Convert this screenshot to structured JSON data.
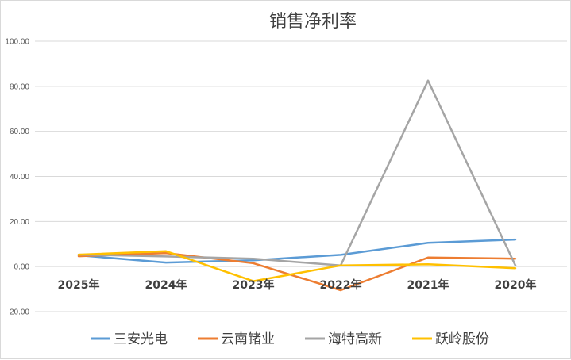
{
  "chart_data": {
    "type": "line",
    "title": "销售净利率",
    "categories": [
      "2025年",
      "2024年",
      "2023年",
      "2022年",
      "2021年",
      "2020年"
    ],
    "y_tick_labels": [
      "100.00",
      "80.00",
      "60.00",
      "40.00",
      "20.00",
      "0.00",
      "-20.00"
    ],
    "ylim": [
      -20,
      100
    ],
    "y_step": 20,
    "grid": true,
    "legend_position": "bottom",
    "series": [
      {
        "name": "三安光电",
        "color": "#5B9BD5",
        "values": [
          5.0,
          1.8,
          2.8,
          5.2,
          10.5,
          12.0
        ]
      },
      {
        "name": "云南锗业",
        "color": "#ED7D31",
        "values": [
          4.6,
          6.0,
          1.5,
          -10.5,
          4.0,
          3.5
        ]
      },
      {
        "name": "海特高新",
        "color": "#A5A5A5",
        "values": [
          5.3,
          4.5,
          3.5,
          0.5,
          82.5,
          0.5
        ]
      },
      {
        "name": "跃岭股份",
        "color": "#FFC000",
        "values": [
          5.3,
          6.8,
          -6.5,
          0.5,
          1.0,
          -0.7
        ]
      }
    ]
  }
}
